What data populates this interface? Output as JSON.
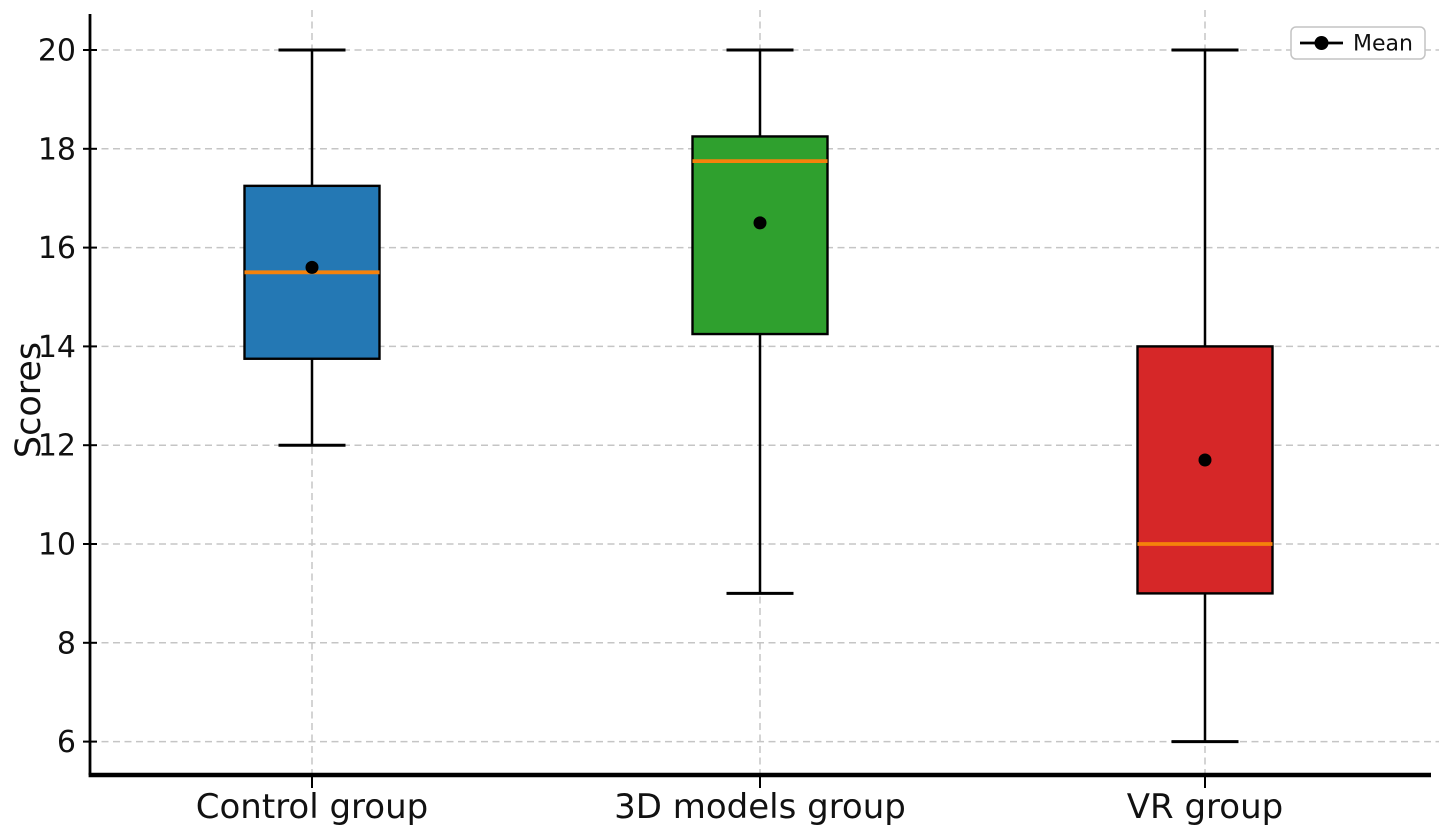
{
  "figure": {
    "background": "#ffffff",
    "axis_color": "#000000",
    "grid_color": "#c5c5c5",
    "text_color": "#111111"
  },
  "chart_data": {
    "type": "boxplot",
    "title": "",
    "xlabel": "",
    "ylabel": "Scores",
    "ylim": [
      5.3,
      20.7
    ],
    "yticks": [
      6,
      8,
      10,
      12,
      14,
      16,
      18,
      20
    ],
    "grid": "dashed horizontal gridlines at y ticks and dashed vertical gridlines at each category",
    "legend": {
      "label": "Mean",
      "position": "top-right",
      "marker": "black-dot-on-line"
    },
    "median_color": "#f5820b",
    "mean_marker_color": "#000000",
    "categories": [
      "Control group",
      "3D models group",
      "VR group"
    ],
    "groups": [
      {
        "label": "Control group",
        "box_color": "#2478b4",
        "whisker_low": 12,
        "q1": 13.75,
        "median": 15.5,
        "q3": 17.25,
        "whisker_high": 20,
        "mean": 15.6
      },
      {
        "label": "3D models group",
        "box_color": "#2fa02e",
        "whisker_low": 9,
        "q1": 14.25,
        "median": 17.75,
        "q3": 18.25,
        "whisker_high": 20,
        "mean": 16.5
      },
      {
        "label": "VR group",
        "box_color": "#d62728",
        "whisker_low": 6,
        "q1": 9,
        "median": 10,
        "q3": 14,
        "whisker_high": 20,
        "mean": 11.7
      }
    ]
  }
}
